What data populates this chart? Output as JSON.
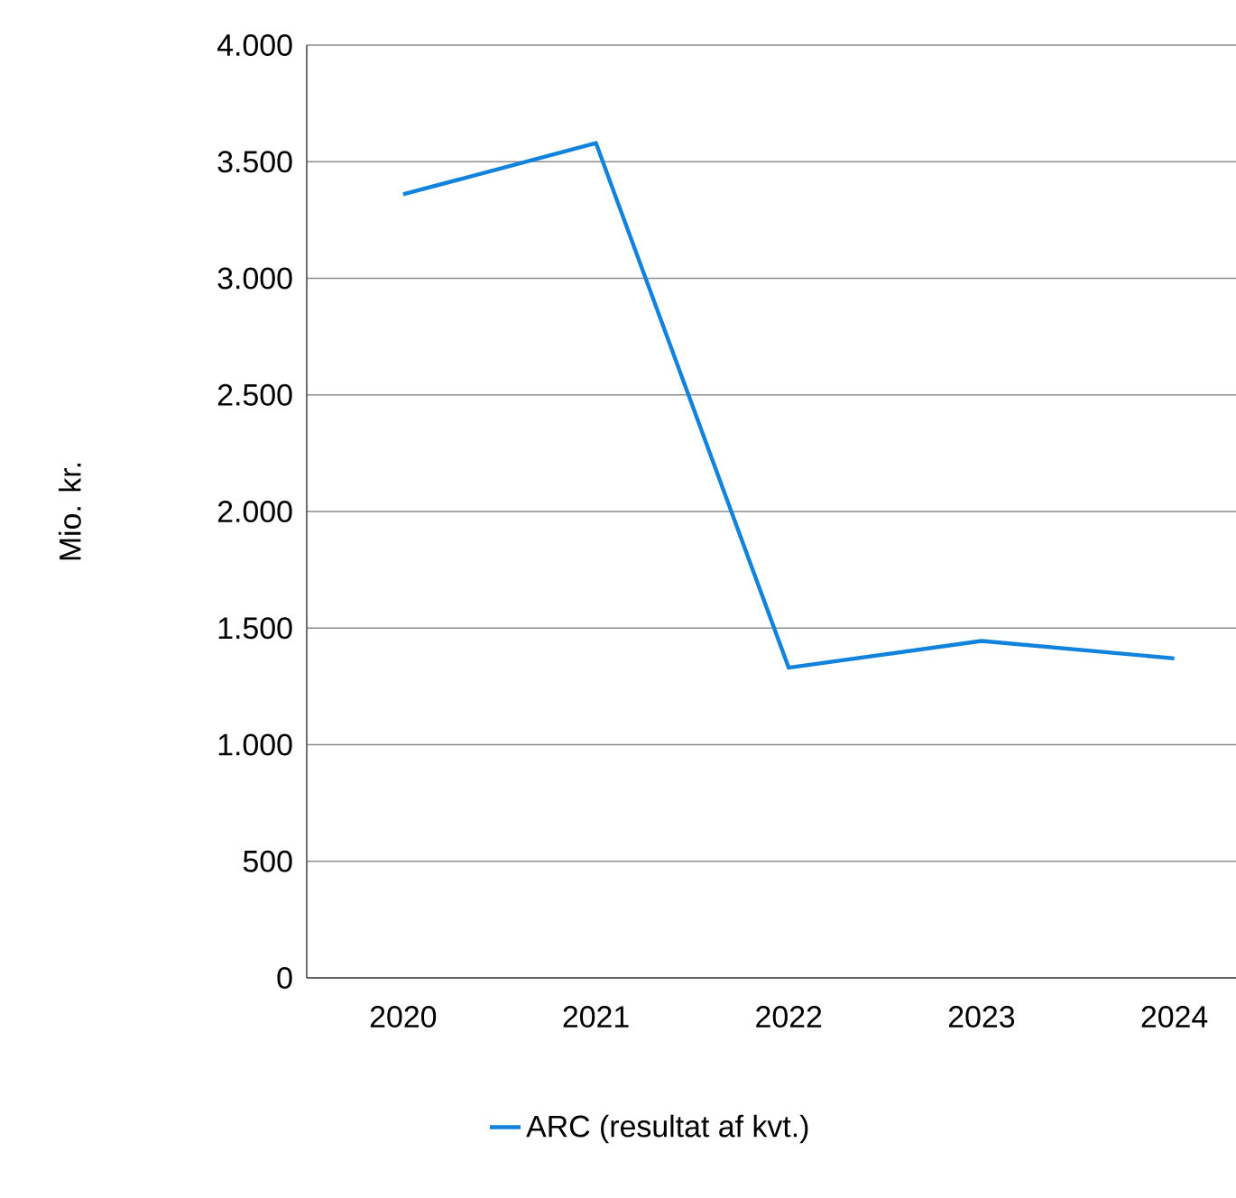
{
  "chart_data": {
    "type": "line",
    "ylabel": "Mio. kr.",
    "categories": [
      "2020",
      "2021",
      "2022",
      "2023",
      "2024"
    ],
    "series": [
      {
        "name": "ARC (resultat af kvt.)",
        "color": "#1283dd",
        "values": [
          3360,
          3580,
          1330,
          1445,
          1370
        ]
      }
    ],
    "ylim": [
      0,
      4000
    ],
    "yticks": [
      {
        "value": 0,
        "label": "0"
      },
      {
        "value": 500,
        "label": "500"
      },
      {
        "value": 1000,
        "label": "1.000"
      },
      {
        "value": 1500,
        "label": "1.500"
      },
      {
        "value": 2000,
        "label": "2.000"
      },
      {
        "value": 2500,
        "label": "2.500"
      },
      {
        "value": 3000,
        "label": "3.000"
      },
      {
        "value": 3500,
        "label": "3.500"
      },
      {
        "value": 4000,
        "label": "4.000"
      }
    ],
    "grid": "y",
    "legend": "bottom",
    "marker": "none",
    "line_style": "solid"
  }
}
